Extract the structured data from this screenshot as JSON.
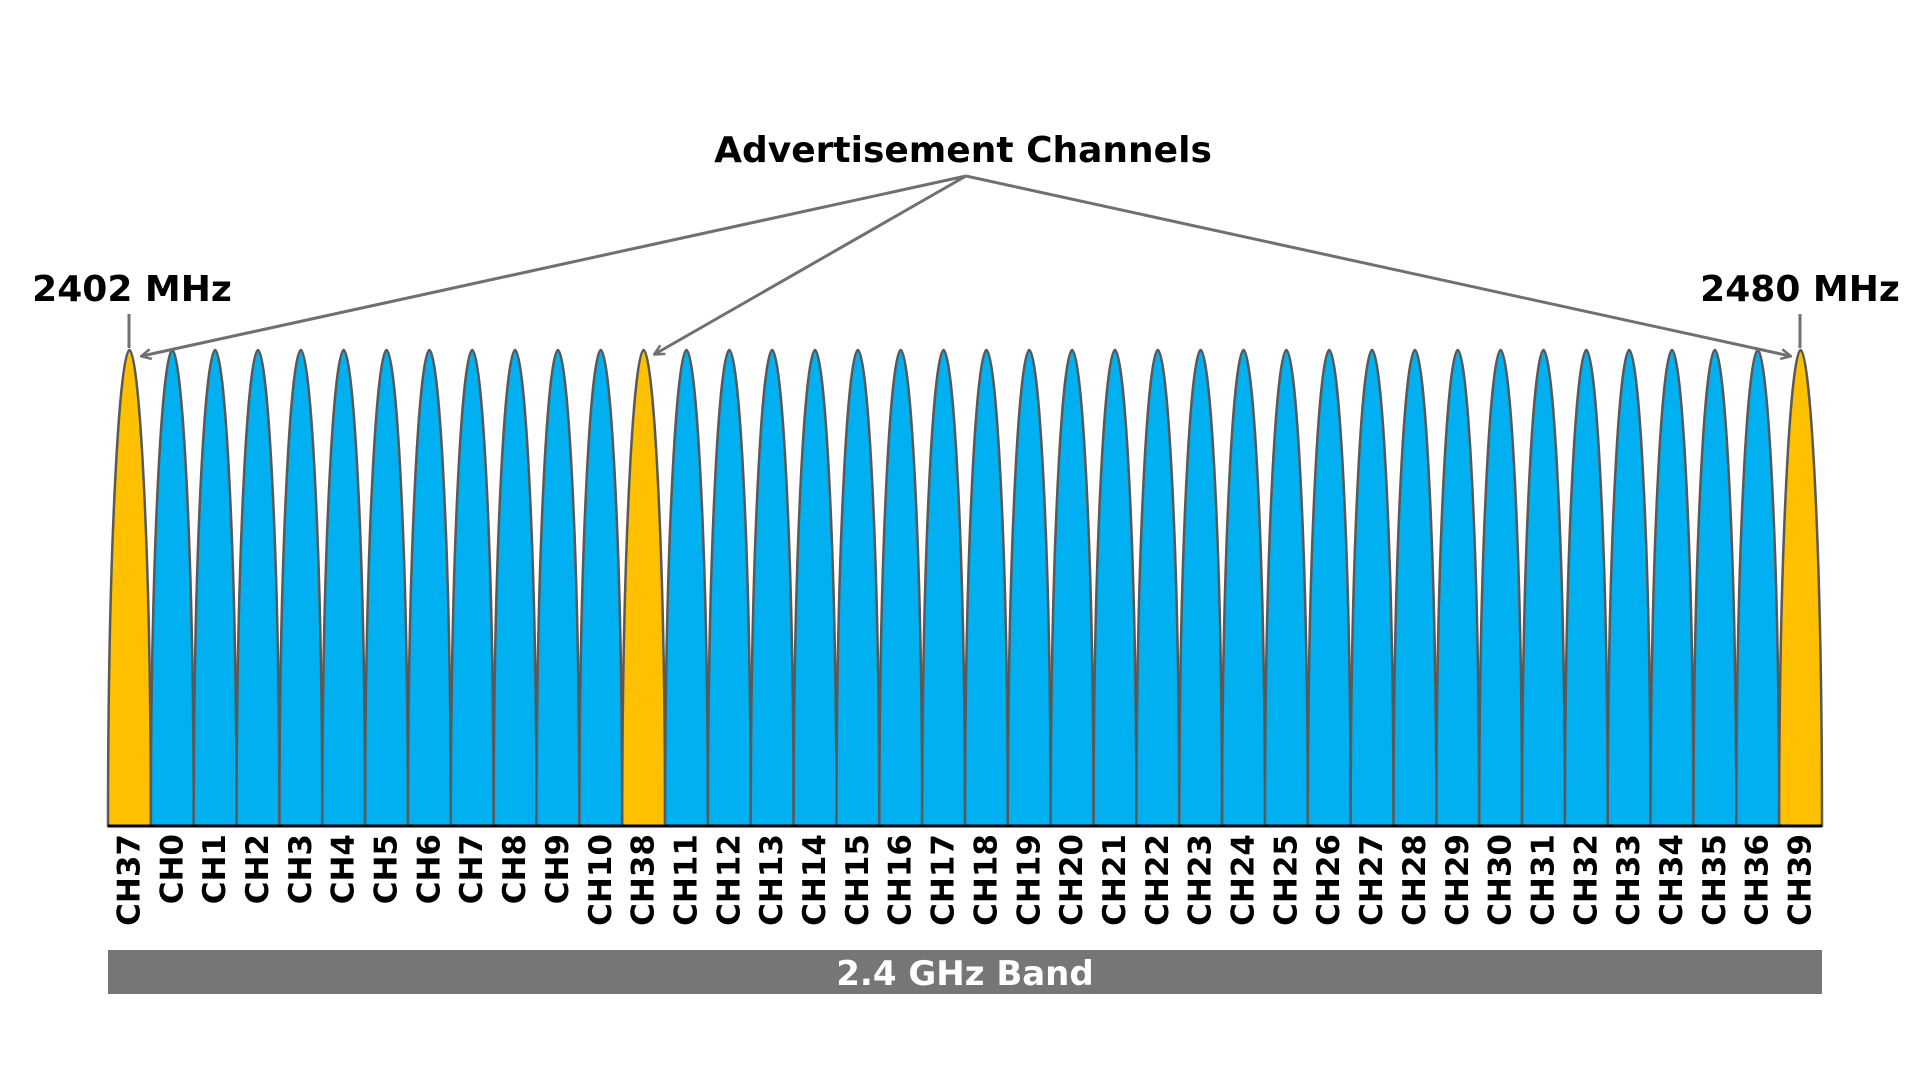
{
  "title": "Advertisement Channels",
  "freq_start_label": "2402 MHz",
  "freq_end_label": "2480 MHz",
  "band_label": "2.4 GHz Band",
  "colors": {
    "advertising": "#FFC000",
    "data": "#00B0F0",
    "outline": "#595959",
    "arrow": "#707070",
    "band_bar": "#767676"
  },
  "channels": [
    {
      "label": "CH37",
      "type": "advertising"
    },
    {
      "label": "CH0",
      "type": "data"
    },
    {
      "label": "CH1",
      "type": "data"
    },
    {
      "label": "CH2",
      "type": "data"
    },
    {
      "label": "CH3",
      "type": "data"
    },
    {
      "label": "CH4",
      "type": "data"
    },
    {
      "label": "CH5",
      "type": "data"
    },
    {
      "label": "CH6",
      "type": "data"
    },
    {
      "label": "CH7",
      "type": "data"
    },
    {
      "label": "CH8",
      "type": "data"
    },
    {
      "label": "CH9",
      "type": "data"
    },
    {
      "label": "CH10",
      "type": "data"
    },
    {
      "label": "CH38",
      "type": "advertising"
    },
    {
      "label": "CH11",
      "type": "data"
    },
    {
      "label": "CH12",
      "type": "data"
    },
    {
      "label": "CH13",
      "type": "data"
    },
    {
      "label": "CH14",
      "type": "data"
    },
    {
      "label": "CH15",
      "type": "data"
    },
    {
      "label": "CH16",
      "type": "data"
    },
    {
      "label": "CH17",
      "type": "data"
    },
    {
      "label": "CH18",
      "type": "data"
    },
    {
      "label": "CH19",
      "type": "data"
    },
    {
      "label": "CH20",
      "type": "data"
    },
    {
      "label": "CH21",
      "type": "data"
    },
    {
      "label": "CH22",
      "type": "data"
    },
    {
      "label": "CH23",
      "type": "data"
    },
    {
      "label": "CH24",
      "type": "data"
    },
    {
      "label": "CH25",
      "type": "data"
    },
    {
      "label": "CH26",
      "type": "data"
    },
    {
      "label": "CH27",
      "type": "data"
    },
    {
      "label": "CH28",
      "type": "data"
    },
    {
      "label": "CH29",
      "type": "data"
    },
    {
      "label": "CH30",
      "type": "data"
    },
    {
      "label": "CH31",
      "type": "data"
    },
    {
      "label": "CH32",
      "type": "data"
    },
    {
      "label": "CH33",
      "type": "data"
    },
    {
      "label": "CH34",
      "type": "data"
    },
    {
      "label": "CH35",
      "type": "data"
    },
    {
      "label": "CH36",
      "type": "data"
    },
    {
      "label": "CH39",
      "type": "advertising"
    }
  ]
}
